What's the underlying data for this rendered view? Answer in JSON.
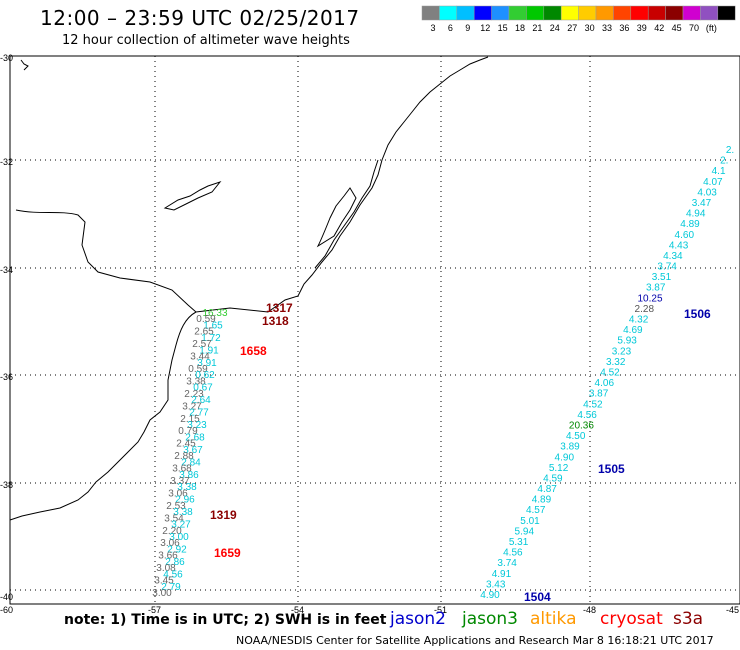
{
  "title": "12:00 – 23:59 UTC 02/25/2017",
  "subtitle": "12 hour collection of altimeter wave heights",
  "colorbar": {
    "colors": [
      "#808080",
      "#00ffff",
      "#00bfff",
      "#0000ff",
      "#1e90ff",
      "#32cd32",
      "#00c800",
      "#008800",
      "#ffff00",
      "#ffcc00",
      "#ff9900",
      "#ff4400",
      "#ff0000",
      "#c80000",
      "#8b0000",
      "#d000d0",
      "#9050c0",
      "#000000"
    ],
    "labels": [
      "3",
      "6",
      "9",
      "12",
      "15",
      "18",
      "21",
      "24",
      "27",
      "30",
      "33",
      "36",
      "39",
      "42",
      "45",
      "70",
      "(ft)"
    ]
  },
  "axes": {
    "lon_labels": [
      "-60",
      "-57",
      "-54",
      "-51",
      "-48",
      "-45"
    ],
    "lat_labels": [
      "-30",
      "-32",
      "-34",
      "-36",
      "-38",
      "-40"
    ]
  },
  "tracks": [
    {
      "id": "1317",
      "color": "#8b0000"
    },
    {
      "id": "1318",
      "color": "#8b0000"
    },
    {
      "id": "1658",
      "color": "#ff0000"
    },
    {
      "id": "1319",
      "color": "#8b0000"
    },
    {
      "id": "1659",
      "color": "#ff0000"
    },
    {
      "id": "1506",
      "color": "#0000aa"
    },
    {
      "id": "1505",
      "color": "#0000aa"
    },
    {
      "id": "1504",
      "color": "#0000aa"
    }
  ],
  "east_track_values": [
    "2.",
    "2.",
    "4.1",
    "4.07",
    "4.03",
    "3.47",
    "4.94",
    "4.89",
    "4.60",
    "4.43",
    "4.34",
    "3.74",
    "3.51",
    "3.87",
    "10.25",
    "2.28",
    "4.32",
    "4.69",
    "5.93",
    "3.23",
    "3.32",
    "4.52",
    "4.06",
    "3.87",
    "4.52",
    "4.56",
    "20.36",
    "4.50",
    "3.89",
    "4.90",
    "5.12",
    "4.59",
    "4.87",
    "4.89",
    "4.57",
    "5.01",
    "5.94",
    "5.31",
    "4.56",
    "3.74",
    "4.91",
    "3.43",
    "4.90"
  ],
  "west_track_values": [
    "16.33",
    "0.59",
    "1.65",
    "2.65",
    "1.72",
    "2.57",
    "1.91",
    "3.44",
    "3.91",
    "0.59",
    "0.62",
    "3.38",
    "0.67",
    "2.23",
    "2.64",
    "3.27",
    "2.77",
    "2.15",
    "3.23",
    "0.79",
    "2.68",
    "2.45",
    "3.67",
    "2.88",
    "2.84",
    "3.68",
    "3.86",
    "3.37",
    "3.38",
    "3.06",
    "2.96",
    "2.53",
    "3.38",
    "3.54",
    "3.27",
    "2.20",
    "3.00",
    "3.06",
    "2.92",
    "3.66",
    "2.86",
    "3.08",
    "4.56",
    "3.45",
    "2.79",
    "3.00"
  ],
  "note": "note: 1) Time is in UTC; 2) SWH is in feet",
  "satellites": [
    {
      "name": "jason2",
      "color": "#0000cc"
    },
    {
      "name": "jason3",
      "color": "#008800"
    },
    {
      "name": "altika",
      "color": "#ff9900"
    },
    {
      "name": "cryosat",
      "color": "#ff0000"
    },
    {
      "name": "s3a",
      "color": "#8b0000"
    }
  ],
  "credit": "NOAA/NESDIS Center for Satellite Applications and Research    Mar  8 16:18:21 UTC 2017"
}
